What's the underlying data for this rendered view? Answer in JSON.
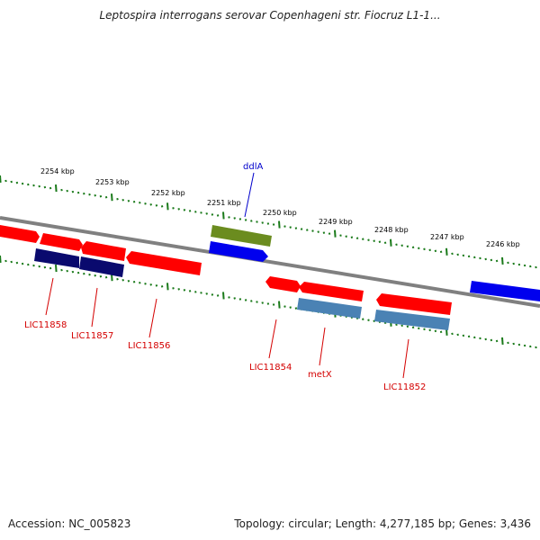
{
  "title": "Leptospira interrogans serovar Copenhageni str. Fiocruz L1-1...",
  "footer": {
    "accession": "Accession: NC_005823",
    "stats": "Topology: circular; Length: 4,277,185 bp; Genes: 3,436"
  },
  "colors": {
    "forward_gene": "#ff0000",
    "reverse_gene_dark": "#0a0a6e",
    "cds_blue": "#0000ee",
    "cds_steel": "#4a82b4",
    "rna_olive": "#6b8c1f",
    "tick": "#1a7a1a",
    "backbone": "#808080",
    "label_red": "#d40000",
    "label_blue": "#0000cc"
  },
  "scale_labels": [
    "2254 kbp",
    "2253 kbp",
    "2252 kbp",
    "2251 kbp",
    "2250 kbp",
    "2249 kbp",
    "2248 kbp",
    "2247 kbp",
    "2246 kbp"
  ],
  "gene_labels": [
    {
      "text": "ddlA",
      "style": "blue"
    },
    {
      "text": "LIC11858",
      "style": "red"
    },
    {
      "text": "LIC11857",
      "style": "red"
    },
    {
      "text": "LIC11856",
      "style": "red"
    },
    {
      "text": "LIC11854",
      "style": "red"
    },
    {
      "text": "metX",
      "style": "red"
    },
    {
      "text": "LIC11852",
      "style": "red"
    }
  ]
}
